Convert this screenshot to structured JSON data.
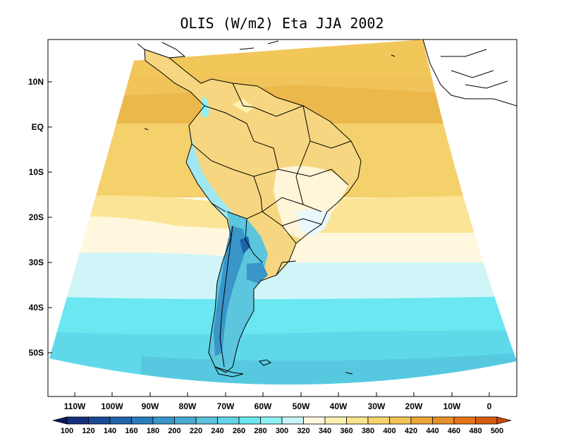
{
  "title": "OLIS (W/m2) Eta JJA 2002",
  "map": {
    "region": "South America",
    "projection": "conic",
    "lat_labels": [
      "10N",
      "EQ",
      "10S",
      "20S",
      "30S",
      "40S",
      "50S"
    ],
    "lon_labels": [
      "110W",
      "100W",
      "90W",
      "80W",
      "70W",
      "60W",
      "50W",
      "40W",
      "30W",
      "20W",
      "10W",
      "0"
    ],
    "features": [
      "coastlines",
      "country-borders",
      "Brazilian state borders"
    ]
  },
  "colorbar": {
    "levels": [
      100,
      120,
      140,
      160,
      180,
      200,
      220,
      240,
      260,
      280,
      300,
      320,
      340,
      360,
      380,
      400,
      420,
      440,
      460,
      480,
      500
    ],
    "colors": [
      "#0b1a5a",
      "#13307b",
      "#1a4a97",
      "#1f63ac",
      "#2a7dbc",
      "#3a95c8",
      "#4aabd4",
      "#5bc1dd",
      "#62d6e8",
      "#6ae7f0",
      "#8ef2f6",
      "#c9f4f8",
      "#fff8de",
      "#fff2b3",
      "#fbe48e",
      "#f6d46d",
      "#f1c455",
      "#eba73a",
      "#e8902a",
      "#e5741b",
      "#d65b10",
      "#cc4b0a"
    ]
  }
}
